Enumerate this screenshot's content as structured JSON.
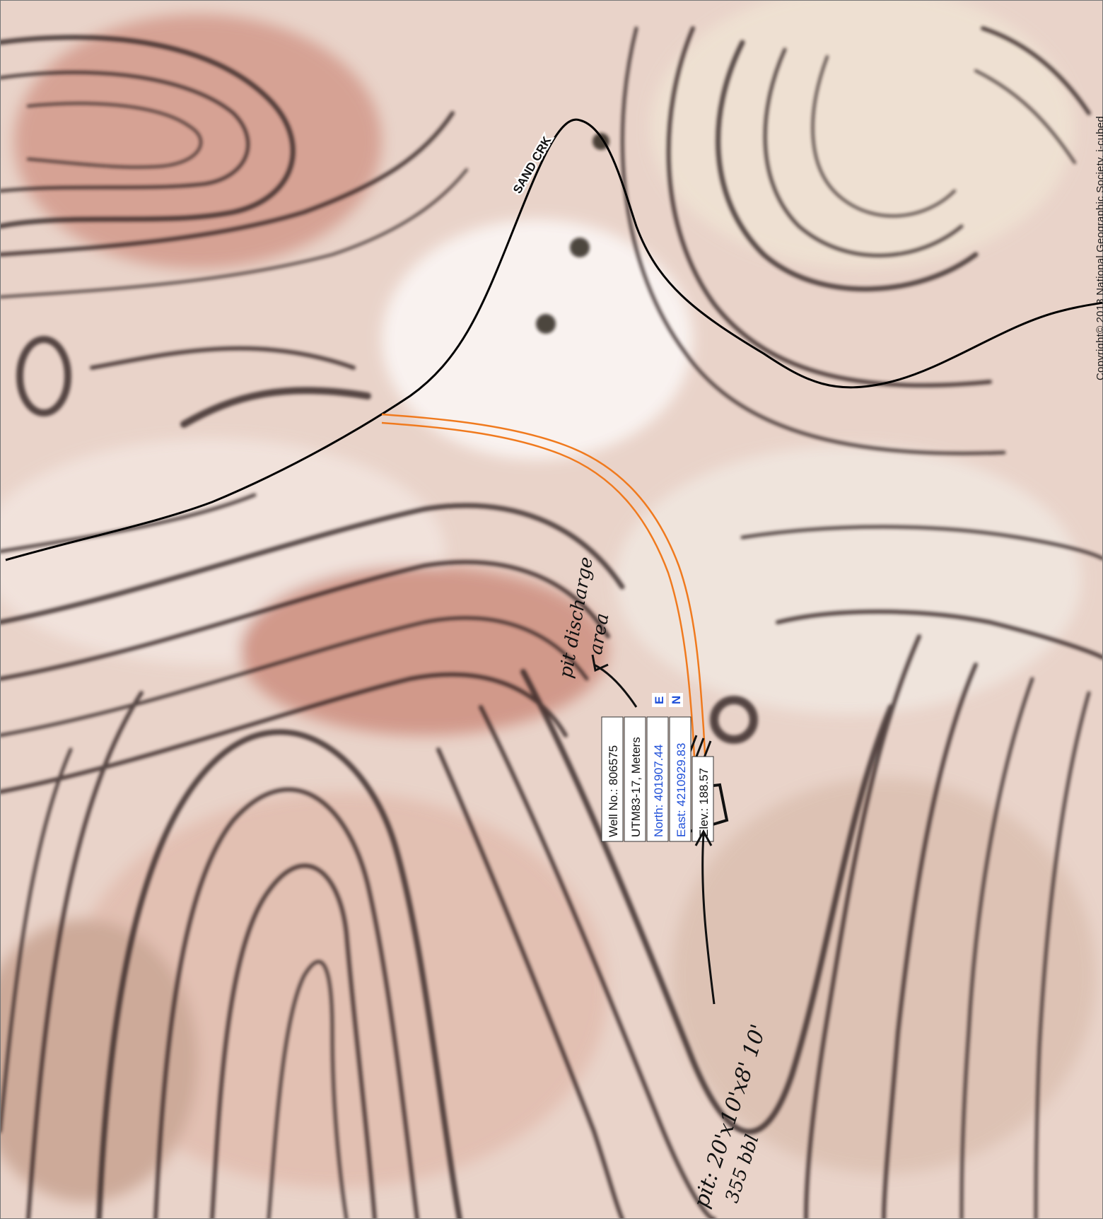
{
  "map": {
    "creek_label": "SAND CRK",
    "copyright": "Copyright© 2013 National Geographic Society, i-cubed",
    "well_label": {
      "line1": "Well No.: 806575",
      "line2": "UTM83-17, Meters",
      "line3": "North: 401907.44",
      "line4": "East: 4210929.83",
      "line5": "Elev.: 188.57",
      "marker_e": "E",
      "marker_n": "N"
    },
    "handwritten": {
      "pit_discharge_1": "pit discharge",
      "pit_discharge_2": "area",
      "pit_size": "pit: 20'x10'x8' 10'",
      "pit_size_2": "355 bbl"
    },
    "colors": {
      "terrain_light": "#f3e9e2",
      "terrain_pink": "#d9a99a",
      "contour": "#2b1d1a",
      "creek_line": "#000000",
      "pipeline": "#f07a1e",
      "well_point": "#e8141c",
      "label_blue": "#1f4fd8"
    }
  }
}
